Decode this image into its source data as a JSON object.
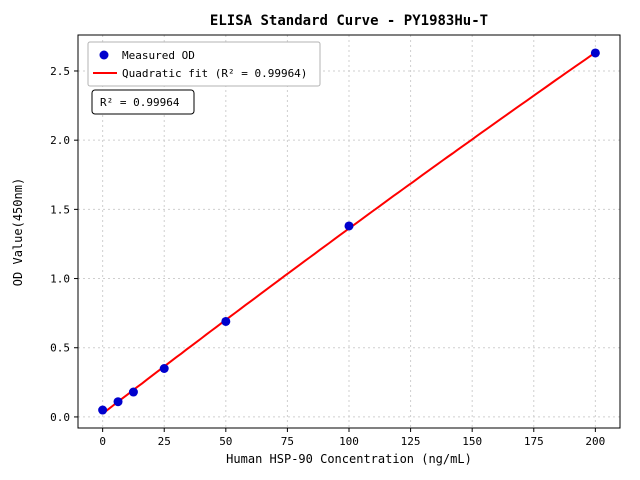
{
  "chart_data": {
    "type": "scatter",
    "title": "ELISA Standard Curve - PY1983Hu-T",
    "xlabel": "Human HSP-90 Concentration (ng/mL)",
    "ylabel": "OD Value(450nm)",
    "xlim": [
      -10,
      210
    ],
    "ylim": [
      -0.08,
      2.76
    ],
    "x_ticks": [
      0,
      25,
      50,
      75,
      100,
      125,
      150,
      175,
      200
    ],
    "y_ticks": [
      0.0,
      0.5,
      1.0,
      1.5,
      2.0,
      2.5
    ],
    "grid": true,
    "legend_position": "upper left",
    "series": [
      {
        "name": "Measured OD",
        "type": "scatter",
        "color": "#0000cd",
        "x": [
          0,
          6.25,
          12.5,
          25,
          50,
          100,
          200
        ],
        "y": [
          0.05,
          0.11,
          0.18,
          0.35,
          0.69,
          1.38,
          2.63
        ]
      },
      {
        "name": "Quadratic fit (R² = 0.99964)",
        "type": "line",
        "color": "#ff0000",
        "fit": "quadratic"
      }
    ],
    "annotation": "R² = 0.99964",
    "colors": {
      "point": "#0000cd",
      "line": "#ff0000",
      "grid": "#cfcfcf"
    }
  }
}
